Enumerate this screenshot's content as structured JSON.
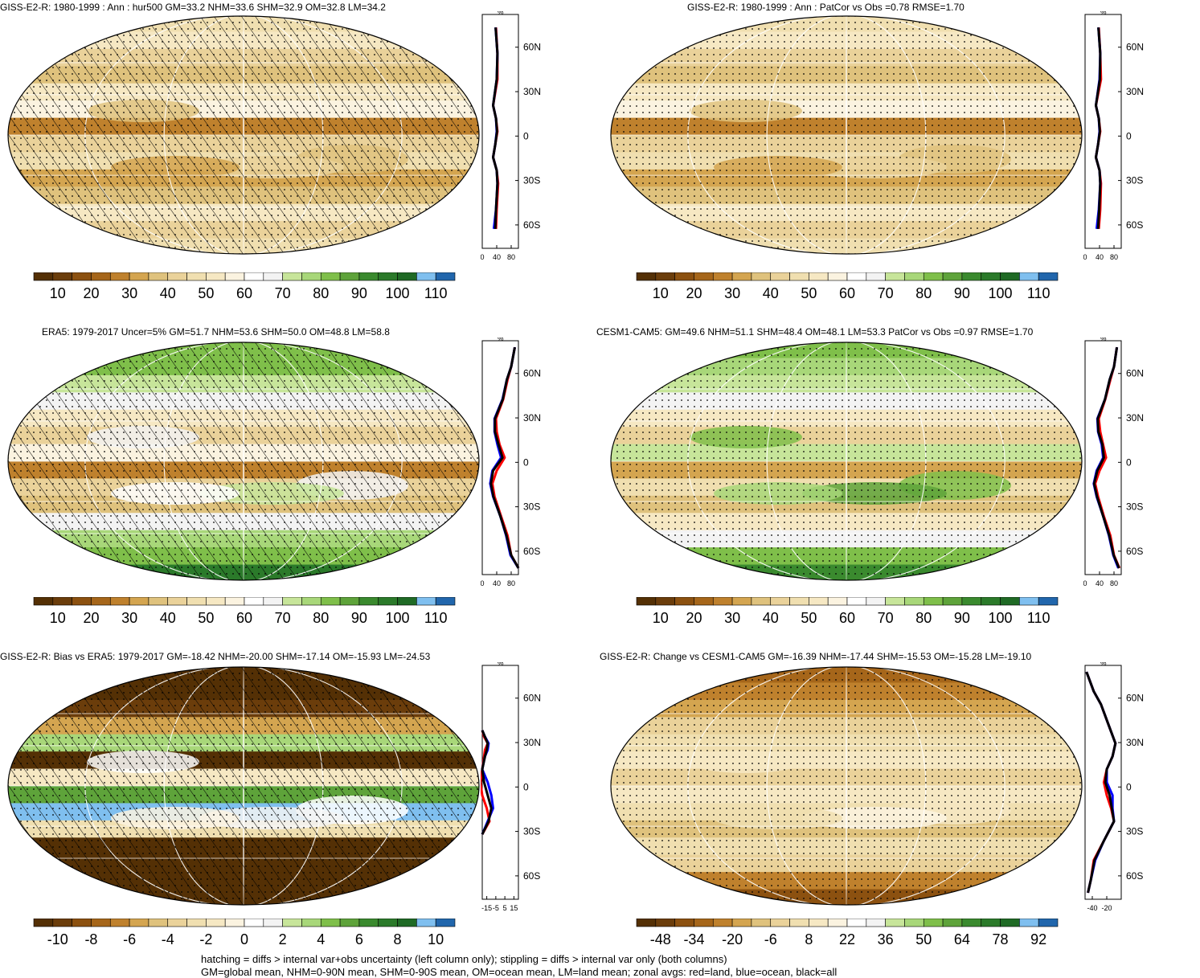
{
  "colors": {
    "brown_dark": "#543005",
    "brown": "#8c5110",
    "tan_dark": "#bf812d",
    "tan": "#dfc27d",
    "tan_light": "#f0dfb0",
    "cream": "#f6e8c3",
    "white": "#ffffff",
    "green_light": "#c7e59a",
    "green": "#7fbf4a",
    "green_dark": "#3a8a2e",
    "green_darker": "#1f6a25",
    "blue_light": "#7fbfef",
    "blue": "#2166ac",
    "zonal_land": "#ff0000",
    "zonal_ocean": "#0000ff",
    "zonal_all": "#000000"
  },
  "palette": [
    "#543005",
    "#6b3d0b",
    "#8c5110",
    "#a6661a",
    "#bf812d",
    "#d4a550",
    "#dfc27d",
    "#ead29a",
    "#f0dfb0",
    "#f6e8c3",
    "#fbf3e0",
    "#ffffff",
    "#f3f3f3",
    "#c7e59a",
    "#a8d779",
    "#7fbf4a",
    "#5ea33a",
    "#3a8a2e",
    "#2b7a2a",
    "#1f6a25",
    "#7fbfef",
    "#2166ac"
  ],
  "panels": [
    {
      "title": "GISS-E2-R: 1980-1999 : Ann : hur500 GM=33.2 NHM=33.6 SHM=32.9 OM=32.8 LM=34.2",
      "hatched": true,
      "colorbar_labels": [
        "10",
        "20",
        "30",
        "40",
        "50",
        "60",
        "70",
        "80",
        "90",
        "100",
        "110"
      ],
      "zonal_units": "%",
      "zonal_xticks": [
        "0",
        "40",
        "80"
      ],
      "lat_labels": [
        "60N",
        "30N",
        "0",
        "30S",
        "60S"
      ]
    },
    {
      "title": "GISS-E2-R: 1980-1999 : Ann : PatCor vs Obs =0.78 RMSE=1.70",
      "hatched": false,
      "colorbar_labels": [
        "10",
        "20",
        "30",
        "40",
        "50",
        "60",
        "70",
        "80",
        "90",
        "100",
        "110"
      ],
      "zonal_units": "%",
      "zonal_xticks": [
        "0",
        "40",
        "80"
      ],
      "lat_labels": [
        "60N",
        "30N",
        "0",
        "30S",
        "60S"
      ]
    },
    {
      "title": "ERA5: 1979-2017 Uncer=5% GM=51.7 NHM=53.6 SHM=50.0 OM=48.8 LM=58.8",
      "hatched": true,
      "colorbar_labels": [
        "10",
        "20",
        "30",
        "40",
        "50",
        "60",
        "70",
        "80",
        "90",
        "100",
        "110"
      ],
      "zonal_units": "%",
      "zonal_xticks": [
        "0",
        "40",
        "80"
      ],
      "lat_labels": [
        "60N",
        "30N",
        "0",
        "30S",
        "60S"
      ]
    },
    {
      "title": "CESM1-CAM5: GM=49.6 NHM=51.1 SHM=48.4 OM=48.1 LM=53.3 PatCor vs Obs =0.97 RMSE=1.70",
      "hatched": false,
      "colorbar_labels": [
        "10",
        "20",
        "30",
        "40",
        "50",
        "60",
        "70",
        "80",
        "90",
        "100",
        "110"
      ],
      "zonal_units": "%",
      "zonal_xticks": [
        "0",
        "40",
        "80"
      ],
      "lat_labels": [
        "60N",
        "30N",
        "0",
        "30S",
        "60S"
      ]
    },
    {
      "title": "GISS-E2-R: Bias vs ERA5: 1979-2017 GM=-18.42 NHM=-20.00 SHM=-17.14 OM=-15.93 LM=-24.53",
      "hatched": true,
      "colorbar_labels": [
        "-10",
        "-8",
        "-6",
        "-4",
        "-2",
        "0",
        "2",
        "4",
        "6",
        "8",
        "10"
      ],
      "zonal_units": "%",
      "zonal_xticks": [
        "-15",
        "-5",
        "5",
        "15"
      ],
      "lat_labels": [
        "60N",
        "30N",
        "0",
        "30S",
        "60S"
      ]
    },
    {
      "title": "GISS-E2-R: Change vs CESM1-CAM5 GM=-16.39 NHM=-17.44 SHM=-15.53 OM=-15.28 LM=-19.10",
      "hatched": false,
      "colorbar_labels": [
        "-48",
        "-34",
        "-20",
        "-6",
        "8",
        "22",
        "36",
        "50",
        "64",
        "78",
        "92"
      ],
      "zonal_units": "%",
      "zonal_xticks": [
        "-40",
        "-20"
      ],
      "lat_labels": [
        "60N",
        "30N",
        "0",
        "30S",
        "60S"
      ]
    }
  ],
  "footer": {
    "line1": "hatching = diffs > internal var+obs uncertainty (left column only); stippling = diffs > internal var only (both columns)",
    "line2": "GM=global mean, NHM=0-90N mean, SHM=0-90S mean, OM=ocean mean, LM=land mean; zonal avgs: red=land, blue=ocean, black=all"
  },
  "chart_data": [
    {
      "type": "line",
      "title": "GISS-E2-R: 1980-1999 : Ann : hur500 GM=33.2 NHM=33.6 SHM=32.9 OM=32.8 LM=34.2",
      "xlabel": "%",
      "xlim": [
        0,
        100
      ],
      "ylim": [
        -90,
        90
      ],
      "y": [
        80,
        60,
        40,
        20,
        10,
        0,
        -10,
        -20,
        -30,
        -40,
        -60,
        -75
      ],
      "series": [
        {
          "name": "land",
          "values": [
            38,
            42,
            42,
            30,
            38,
            42,
            36,
            30,
            40,
            44,
            40,
            38
          ]
        },
        {
          "name": "ocean",
          "values": [
            37,
            42,
            40,
            30,
            38,
            40,
            36,
            30,
            40,
            42,
            38,
            32
          ]
        },
        {
          "name": "all",
          "values": [
            37,
            42,
            40,
            30,
            38,
            41,
            36,
            30,
            40,
            42,
            38,
            36
          ]
        }
      ]
    },
    {
      "type": "line",
      "title": "GISS-E2-R: 1980-1999 : Ann : PatCor vs Obs =0.78 RMSE=1.70",
      "xlabel": "%",
      "xlim": [
        0,
        100
      ],
      "ylim": [
        -90,
        90
      ],
      "y": [
        80,
        60,
        40,
        20,
        10,
        0,
        -10,
        -20,
        -30,
        -40,
        -60,
        -75
      ],
      "series": [
        {
          "name": "land",
          "values": [
            38,
            42,
            44,
            30,
            38,
            42,
            36,
            30,
            40,
            44,
            42,
            38
          ]
        },
        {
          "name": "ocean",
          "values": [
            37,
            42,
            40,
            30,
            38,
            40,
            36,
            30,
            40,
            42,
            38,
            32
          ]
        },
        {
          "name": "all",
          "values": [
            37,
            42,
            41,
            30,
            38,
            41,
            36,
            30,
            40,
            42,
            39,
            36
          ]
        }
      ]
    },
    {
      "type": "line",
      "title": "ERA5: 1979-2017 Uncer=5% GM=51.7 NHM=53.6 SHM=50.0 OM=48.8 LM=58.8",
      "xlabel": "%",
      "xlim": [
        0,
        100
      ],
      "ylim": [
        -90,
        90
      ],
      "y": [
        85,
        70,
        60,
        45,
        30,
        20,
        10,
        0,
        -10,
        -20,
        -30,
        -45,
        -60,
        -75,
        -85
      ],
      "series": [
        {
          "name": "land",
          "values": [
            90,
            80,
            70,
            58,
            38,
            40,
            48,
            62,
            40,
            28,
            34,
            52,
            70,
            80,
            100
          ]
        },
        {
          "name": "ocean",
          "values": [
            90,
            80,
            68,
            56,
            34,
            34,
            42,
            52,
            28,
            22,
            30,
            50,
            66,
            78,
            100
          ]
        },
        {
          "name": "all",
          "values": [
            90,
            80,
            68,
            57,
            35,
            35,
            45,
            56,
            30,
            24,
            31,
            50,
            67,
            80,
            100
          ]
        }
      ]
    },
    {
      "type": "line",
      "title": "CESM1-CAM5: GM=49.6 NHM=51.1 SHM=48.4 OM=48.1 LM=53.3 PatCor vs Obs =0.97 RMSE=1.70",
      "xlabel": "%",
      "xlim": [
        0,
        100
      ],
      "ylim": [
        -90,
        90
      ],
      "y": [
        85,
        70,
        60,
        45,
        30,
        20,
        10,
        0,
        -10,
        -20,
        -30,
        -45,
        -60,
        -75,
        -85
      ],
      "series": [
        {
          "name": "land",
          "values": [
            88,
            80,
            70,
            56,
            38,
            42,
            50,
            58,
            40,
            28,
            36,
            52,
            70,
            80,
            95
          ]
        },
        {
          "name": "ocean",
          "values": [
            88,
            80,
            68,
            55,
            34,
            36,
            46,
            50,
            32,
            24,
            32,
            50,
            66,
            78,
            92
          ]
        },
        {
          "name": "all",
          "values": [
            88,
            80,
            68,
            55,
            35,
            37,
            48,
            52,
            34,
            25,
            33,
            50,
            67,
            79,
            94
          ]
        }
      ]
    },
    {
      "type": "line",
      "title": "GISS-E2-R: Bias vs ERA5: 1979-2017 GM=-18.42 NHM=-20.00 SHM=-17.14 OM=-15.93 LM=-24.53",
      "xlabel": "%",
      "xlim": [
        -20,
        20
      ],
      "ylim": [
        -90,
        90
      ],
      "y": [
        40,
        35,
        30,
        25,
        20,
        10,
        0,
        -10,
        -20,
        -30,
        -40
      ],
      "series": [
        {
          "name": "land",
          "values": [
            -20,
            -18,
            -14,
            -17,
            -18,
            -20,
            -22,
            -20,
            -15,
            -12,
            -20
          ]
        },
        {
          "name": "ocean",
          "values": [
            -20,
            -17,
            -13,
            -14,
            -17,
            -20,
            -14,
            -10,
            -8,
            -14,
            -20
          ]
        },
        {
          "name": "all",
          "values": [
            -20,
            -17,
            -14,
            -15,
            -17,
            -20,
            -18,
            -14,
            -10,
            -13,
            -20
          ]
        }
      ]
    },
    {
      "type": "line",
      "title": "GISS-E2-R: Change vs CESM1-CAM5 GM=-16.39 NHM=-17.44 SHM=-15.53 OM=-15.28 LM=-19.10",
      "xlabel": "%",
      "xlim": [
        -50,
        0
      ],
      "ylim": [
        -90,
        90
      ],
      "y": [
        85,
        70,
        60,
        45,
        30,
        20,
        10,
        0,
        -10,
        -20,
        -30,
        -45,
        -60,
        -75,
        -85
      ],
      "series": [
        {
          "name": "land",
          "values": [
            -48,
            -38,
            -28,
            -18,
            -8,
            -12,
            -20,
            -24,
            -20,
            -14,
            -10,
            -24,
            -38,
            -42,
            -46
          ]
        },
        {
          "name": "ocean",
          "values": [
            -48,
            -38,
            -28,
            -18,
            -8,
            -12,
            -20,
            -20,
            -12,
            -12,
            -10,
            -24,
            -36,
            -42,
            -46
          ]
        },
        {
          "name": "all",
          "values": [
            -48,
            -38,
            -28,
            -18,
            -8,
            -12,
            -20,
            -22,
            -16,
            -13,
            -10,
            -24,
            -37,
            -42,
            -46
          ]
        }
      ]
    }
  ]
}
